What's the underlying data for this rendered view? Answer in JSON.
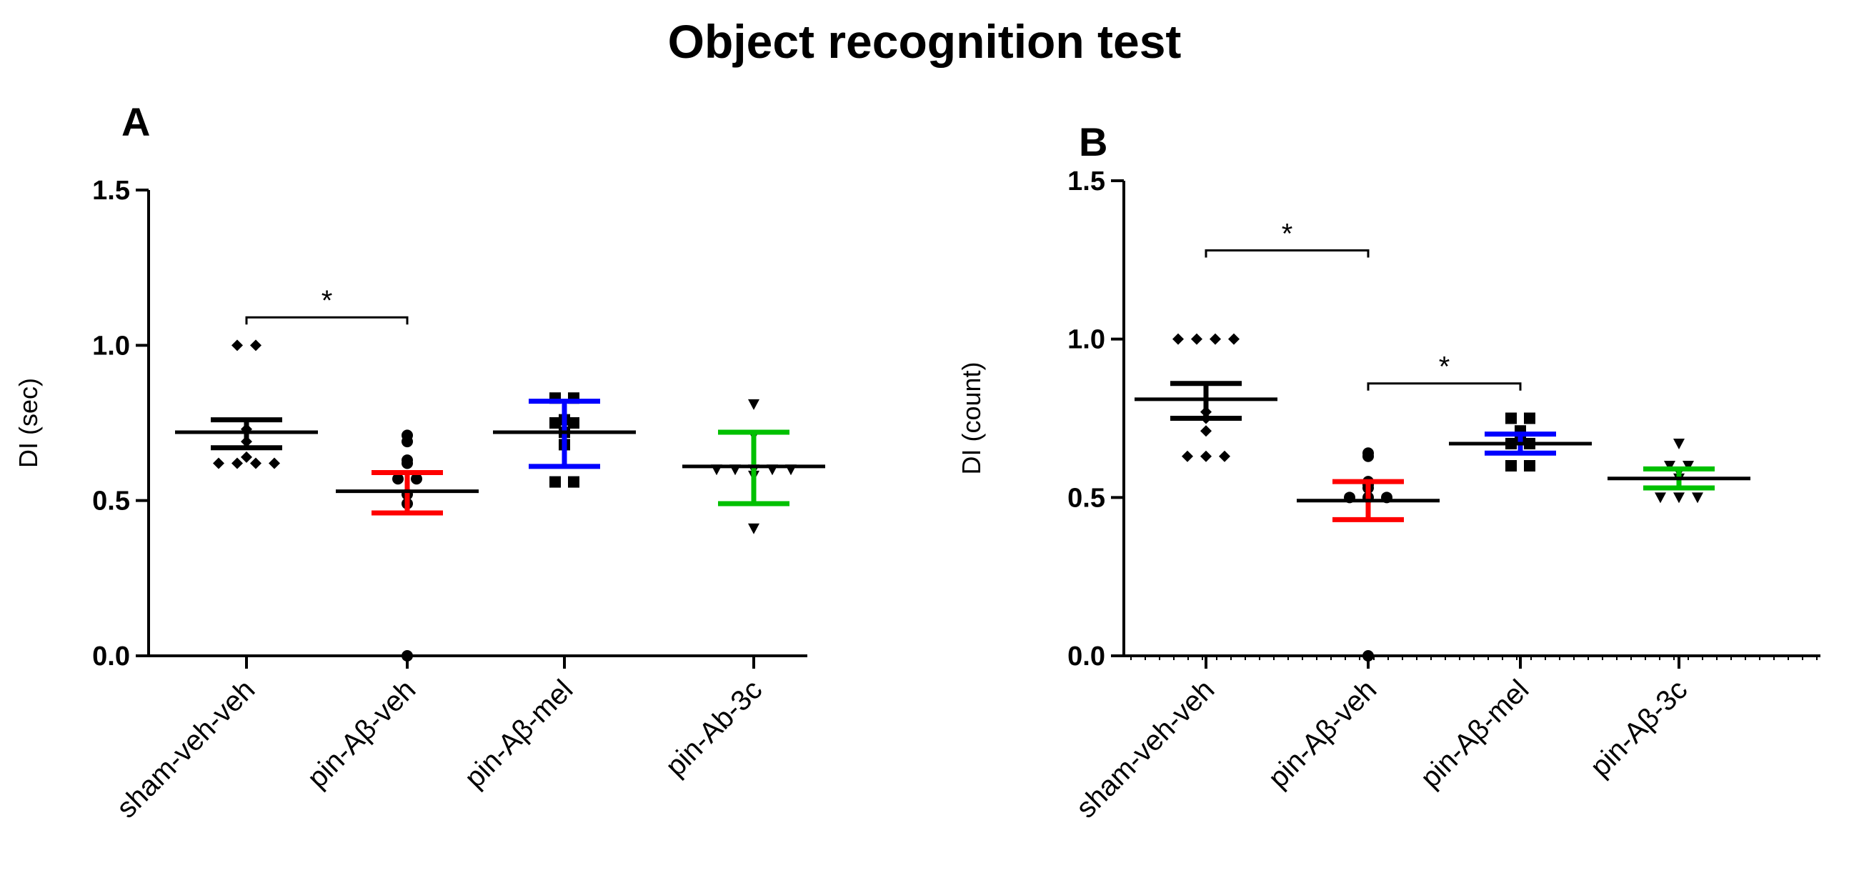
{
  "figure": {
    "title": "Object recognition test"
  },
  "colors": {
    "black": "#000000",
    "red": "#ff0000",
    "blue": "#0000ff",
    "green": "#00c000"
  },
  "chart_data": [
    {
      "type": "scatter",
      "panel_label": "A",
      "ylabel": "DI (sec)",
      "xlabel": "",
      "ylim": [
        0,
        1.5
      ],
      "yticks": [
        "0.0",
        "0.5",
        "1.0",
        "1.5"
      ],
      "categories": [
        "sham-veh-veh",
        "pin-Aβ-veh",
        "pin-Aβ-mel",
        "pin-Ab-3c"
      ],
      "series": [
        {
          "category": "sham-veh-veh",
          "color": "black",
          "marker": "diamond",
          "values": [
            1.0,
            1.0,
            0.73,
            0.69,
            0.64,
            0.62,
            0.62,
            0.62,
            0.62
          ],
          "mean": 0.72,
          "err_low": 0.67,
          "err_high": 0.76
        },
        {
          "category": "pin-Aβ-veh",
          "color": "red",
          "marker": "circle",
          "values": [
            0.71,
            0.69,
            0.63,
            0.62,
            0.57,
            0.57,
            0.52,
            0.49,
            0.0
          ],
          "mean": 0.53,
          "err_low": 0.46,
          "err_high": 0.59
        },
        {
          "category": "pin-Aβ-mel",
          "color": "blue",
          "marker": "square",
          "values": [
            0.83,
            0.83,
            0.76,
            0.75,
            0.75,
            0.72,
            0.68,
            0.56,
            0.56
          ],
          "mean": 0.72,
          "err_low": 0.61,
          "err_high": 0.82
        },
        {
          "category": "pin-Ab-3c",
          "color": "green",
          "marker": "triangle",
          "values": [
            0.81,
            0.71,
            0.6,
            0.6,
            0.6,
            0.6,
            0.6,
            0.58,
            0.41
          ],
          "mean": 0.61,
          "err_low": 0.49,
          "err_high": 0.72
        }
      ],
      "significance": [
        {
          "from": "sham-veh-veh",
          "to": "pin-Aβ-veh",
          "y": 1.09,
          "label": "*"
        }
      ]
    },
    {
      "type": "scatter",
      "panel_label": "B",
      "ylabel": "DI (count)",
      "xlabel": "",
      "ylim": [
        0,
        1.5
      ],
      "yticks": [
        "0.0",
        "0.5",
        "1.0",
        "1.5"
      ],
      "categories": [
        "sham-veh-veh",
        "pin-Aβ-veh",
        "pin-Aβ-mel",
        "pin-Aβ-3c"
      ],
      "series": [
        {
          "category": "sham-veh-veh",
          "color": "black",
          "marker": "diamond",
          "values": [
            1.0,
            1.0,
            1.0,
            1.0,
            0.77,
            0.75,
            0.71,
            0.63,
            0.63,
            0.63
          ],
          "mean": 0.81,
          "err_low": 0.75,
          "err_high": 0.86
        },
        {
          "category": "pin-Aβ-veh",
          "color": "red",
          "marker": "circle",
          "values": [
            0.64,
            0.63,
            0.55,
            0.54,
            0.53,
            0.5,
            0.5,
            0.5,
            0.0
          ],
          "mean": 0.49,
          "err_low": 0.43,
          "err_high": 0.55
        },
        {
          "category": "pin-Aβ-mel",
          "color": "blue",
          "marker": "square",
          "values": [
            0.75,
            0.75,
            0.71,
            0.69,
            0.67,
            0.67,
            0.6,
            0.6
          ],
          "mean": 0.67,
          "err_low": 0.64,
          "err_high": 0.7
        },
        {
          "category": "pin-Aβ-3c",
          "color": "green",
          "marker": "triangle",
          "values": [
            0.67,
            0.6,
            0.6,
            0.58,
            0.56,
            0.5,
            0.5,
            0.5
          ],
          "mean": 0.56,
          "err_low": 0.53,
          "err_high": 0.59
        }
      ],
      "significance": [
        {
          "from": "sham-veh-veh",
          "to": "pin-Aβ-veh",
          "y": 1.28,
          "label": "*"
        },
        {
          "from": "pin-Aβ-veh",
          "to": "pin-Aβ-mel",
          "y": 0.86,
          "label": "*"
        }
      ]
    }
  ]
}
